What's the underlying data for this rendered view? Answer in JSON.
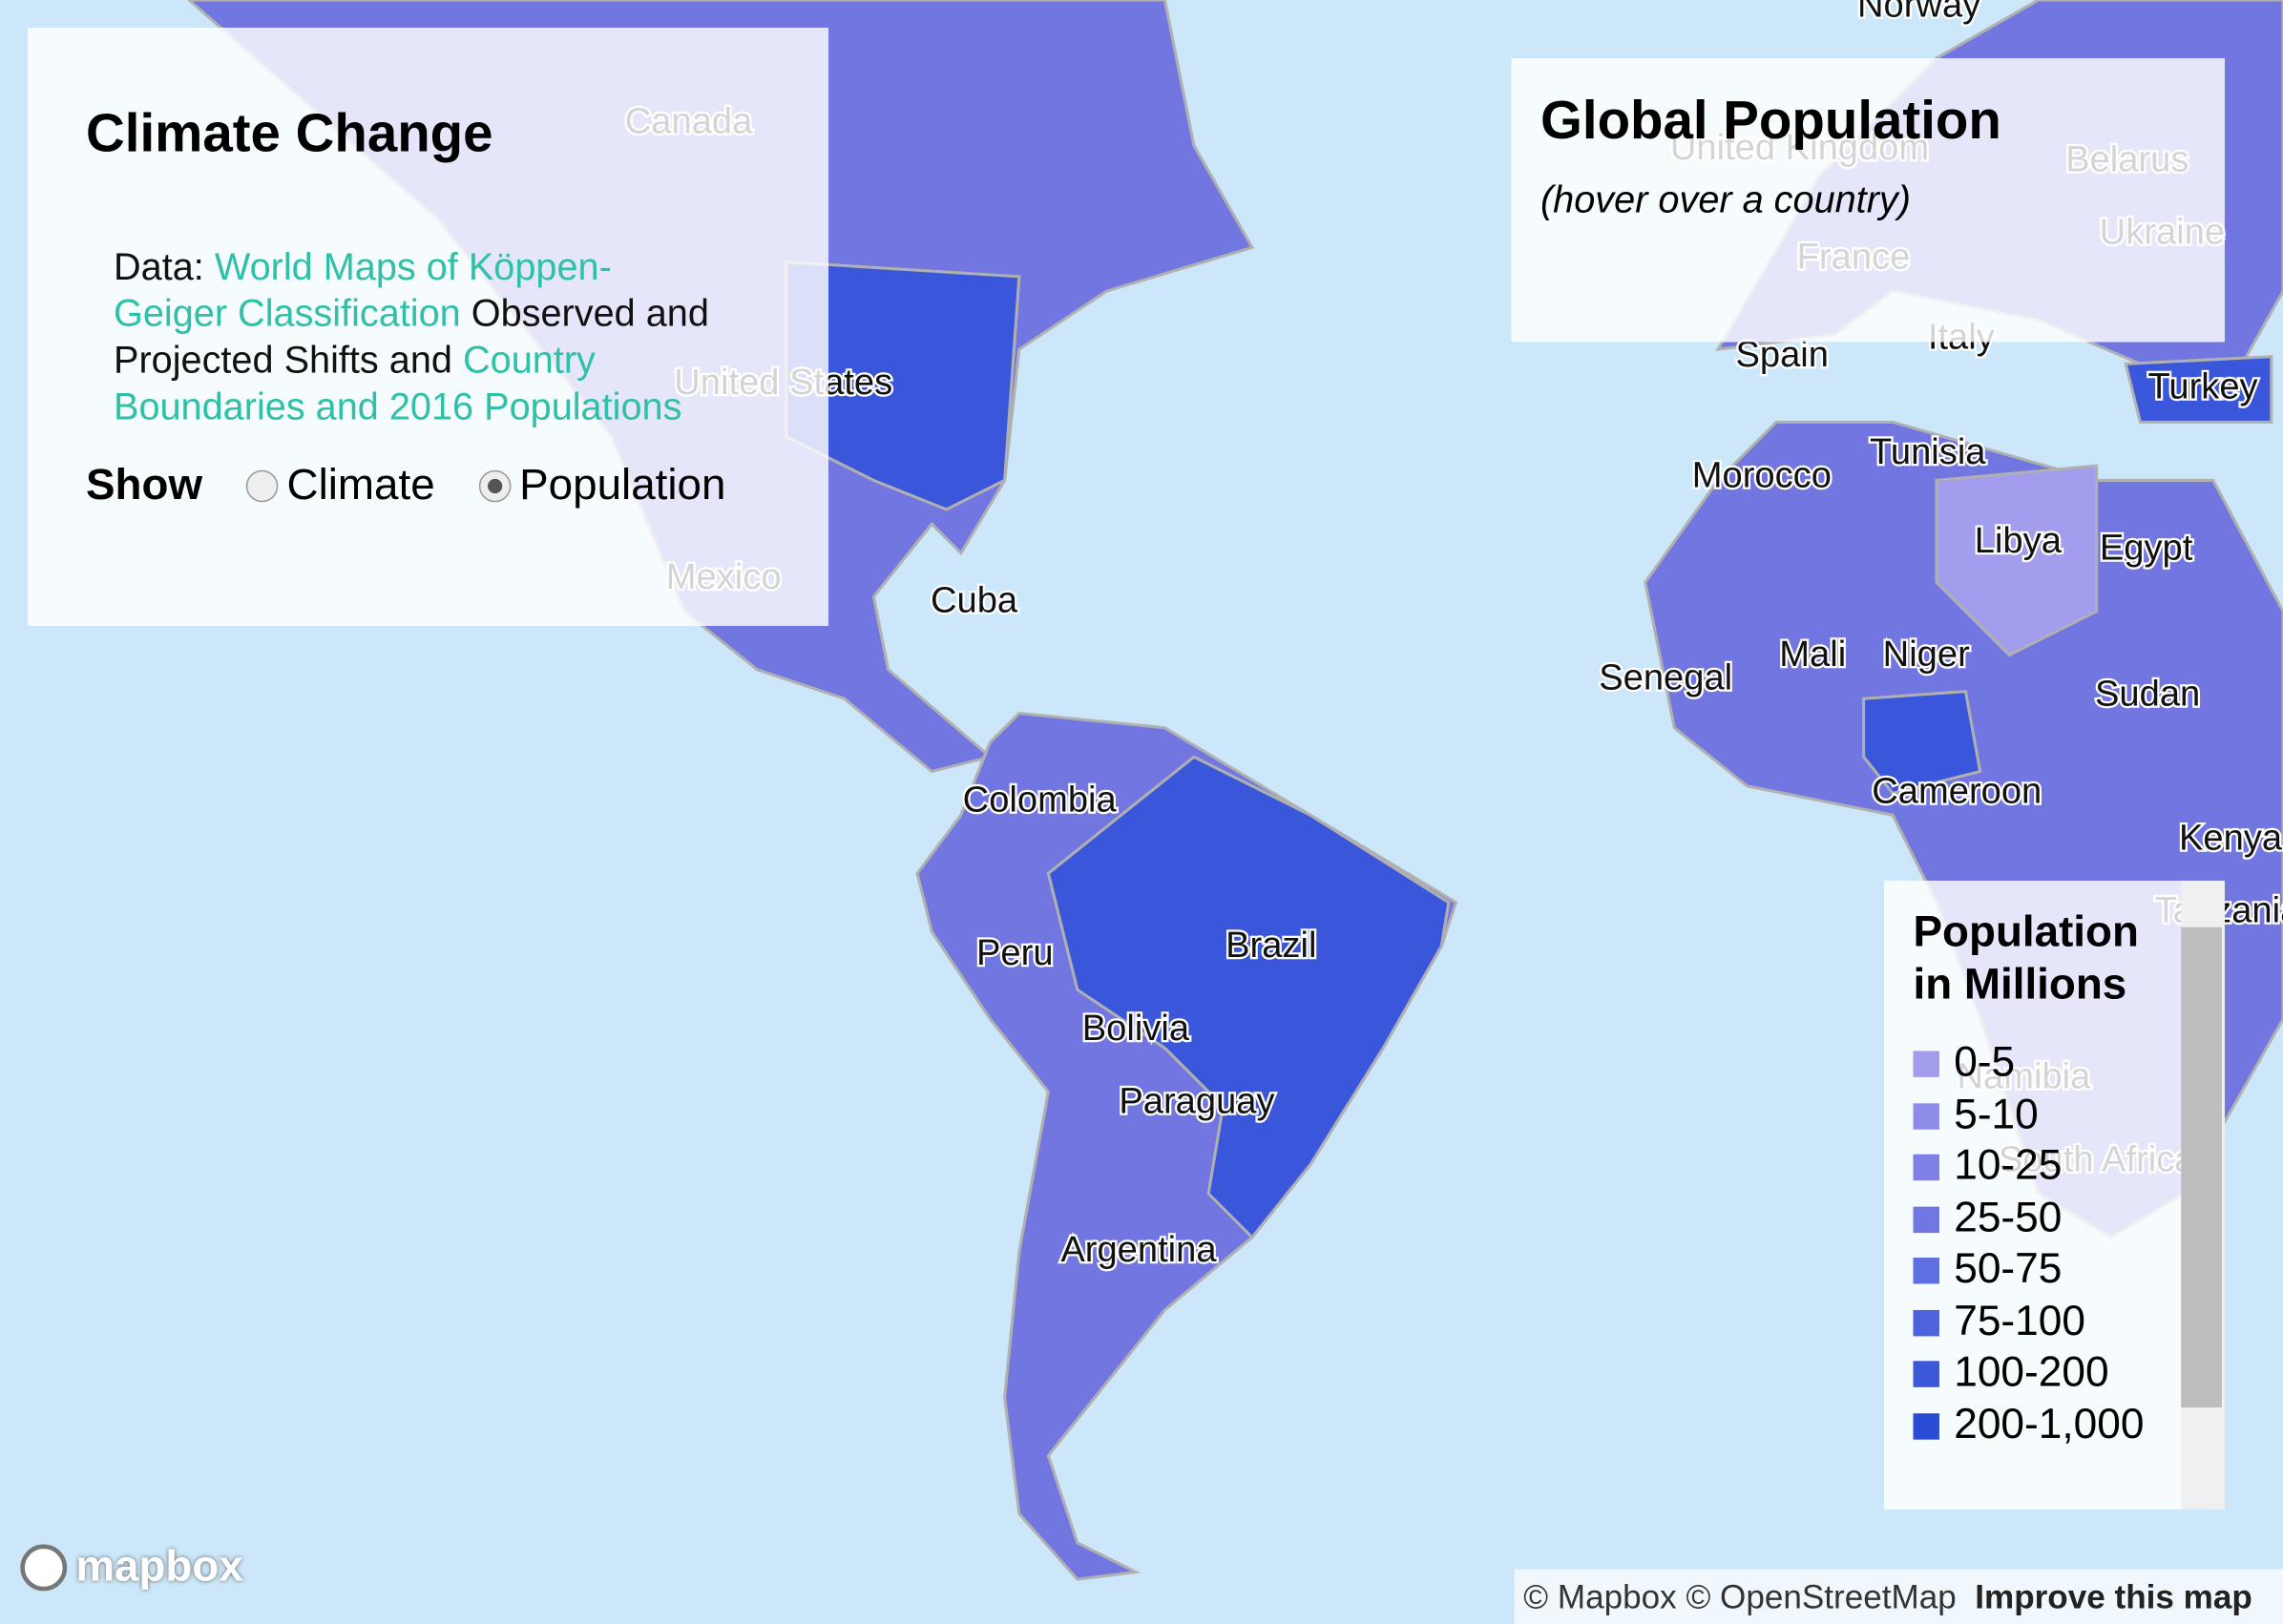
{
  "map": {
    "labels": [
      "Canada",
      "United States",
      "Mexico",
      "Cuba",
      "Colombia",
      "Peru",
      "Brazil",
      "Bolivia",
      "Paraguay",
      "Argentina",
      "Norway",
      "United Kingdom",
      "Belarus",
      "Ukraine",
      "France",
      "Spain",
      "Italy",
      "Turkey",
      "Morocco",
      "Tunisia",
      "Libya",
      "Egypt",
      "Senegal",
      "Mali",
      "Niger",
      "Sudan",
      "Cameroon",
      "Kenya",
      "Tanzania",
      "Namibia",
      "South Africa"
    ]
  },
  "info_panel": {
    "title": "Climate Change",
    "data_prefix": "Data:",
    "link1": "World Maps of Köppen-Geiger Classification",
    "text_mid": "Observed and Projected Shifts and",
    "link2": "Country Boundaries and 2016 Populations",
    "show_label": "Show",
    "options": [
      "Climate",
      "Population"
    ]
  },
  "hover_panel": {
    "title": "Global Population",
    "subtitle": "(hover over a country)"
  },
  "legend": {
    "title": "Population in Millions",
    "items": [
      {
        "label": "0-5",
        "color": "#a29ded"
      },
      {
        "label": "5-10",
        "color": "#8f8ce9"
      },
      {
        "label": "10-25",
        "color": "#7f7fe6"
      },
      {
        "label": "25-50",
        "color": "#7077e3"
      },
      {
        "label": "50-75",
        "color": "#5f6ee0"
      },
      {
        "label": "75-100",
        "color": "#4d63de"
      },
      {
        "label": "100-200",
        "color": "#3b57da"
      },
      {
        "label": "200-1,000",
        "color": "#2a4bd6"
      }
    ]
  },
  "attribution": {
    "logo": "mapbox",
    "mapbox": "© Mapbox",
    "osm": "© OpenStreetMap",
    "improve": "Improve this map"
  }
}
